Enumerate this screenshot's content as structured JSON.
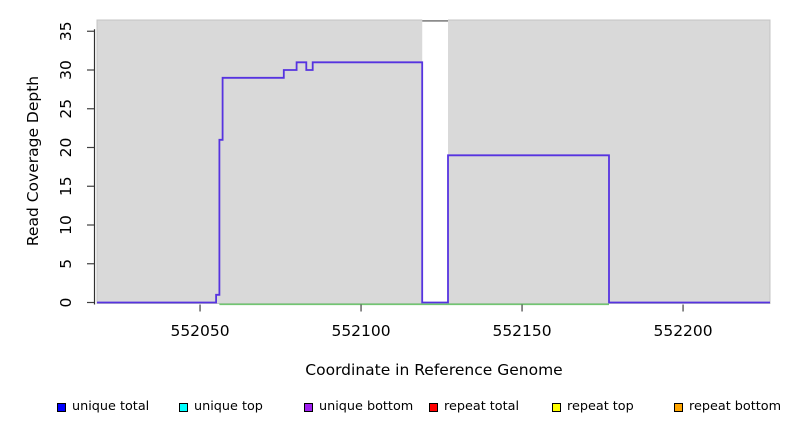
{
  "chart_data": {
    "type": "line",
    "subtype": "step-coverage",
    "title": "",
    "xlabel": "Coordinate in Reference Genome",
    "ylabel": "Read Coverage Depth",
    "xlim": [
      552018,
      552227
    ],
    "ylim": [
      0,
      35
    ],
    "x_ticks": [
      552050,
      552100,
      552150,
      552200
    ],
    "y_ticks": [
      0,
      5,
      10,
      15,
      20,
      25,
      30,
      35
    ],
    "grid": false,
    "legend_position": "bottom",
    "colors": {
      "plot_bg": "#d9d9d9",
      "panel_border": "#c4c4c4",
      "coverage_line": "#5633e0",
      "baseline_green": "#71c671",
      "mask_fill": "#ffffff",
      "mask_top_edge": "#8c8c8c",
      "axis_line": "#303030",
      "tick_mark": "#404040"
    },
    "mask_region": {
      "x0": 552119,
      "x1": 552127,
      "note": "white band over panel, full height"
    },
    "series": [
      {
        "name": "zero-depth baseline (green)",
        "color": "#71c671",
        "points": [
          [
            552056,
            0
          ],
          [
            552177,
            0
          ]
        ]
      },
      {
        "name": "unique bottom coverage (step line)",
        "color": "#5633e0",
        "points": [
          [
            552018,
            0
          ],
          [
            552055,
            0
          ],
          [
            552055,
            1
          ],
          [
            552056,
            1
          ],
          [
            552056,
            21
          ],
          [
            552057,
            21
          ],
          [
            552057,
            29
          ],
          [
            552076,
            29
          ],
          [
            552076,
            30
          ],
          [
            552080,
            30
          ],
          [
            552080,
            31
          ],
          [
            552083,
            31
          ],
          [
            552083,
            30
          ],
          [
            552085,
            30
          ],
          [
            552085,
            31
          ],
          [
            552119,
            31
          ],
          [
            552119,
            0
          ],
          [
            552127,
            0
          ],
          [
            552127,
            19
          ],
          [
            552177,
            19
          ],
          [
            552177,
            0
          ],
          [
            552227,
            0
          ]
        ]
      }
    ],
    "legend": [
      {
        "label": "unique total",
        "color": "#0000ff"
      },
      {
        "label": "unique top",
        "color": "#00ffff"
      },
      {
        "label": "unique bottom",
        "color": "#a020f0"
      },
      {
        "label": "repeat total",
        "color": "#ff0000"
      },
      {
        "label": "repeat top",
        "color": "#ffff00"
      },
      {
        "label": "repeat bottom",
        "color": "#ffa500"
      }
    ]
  }
}
